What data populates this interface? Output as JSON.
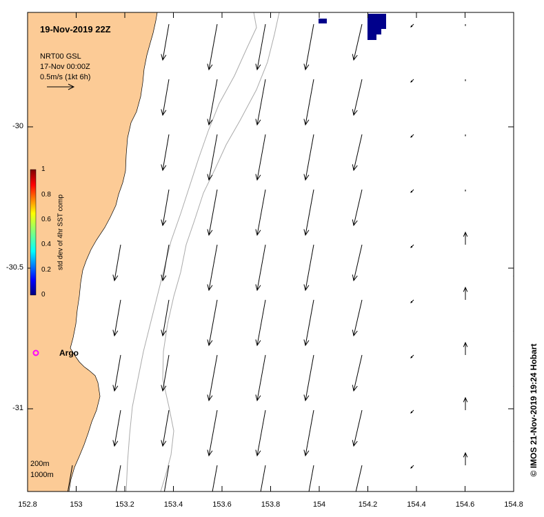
{
  "header": {
    "timestamp": "19-Nov-2019 22Z",
    "product": "NRT00 GSL",
    "product_time": "17-Nov 00:00Z",
    "scale_label": "0.5m/s (1kt 6h)"
  },
  "colorbar": {
    "title": "std dev of 4hr SST comp",
    "ticks": [
      "1",
      "0.8",
      "0.6",
      "0.4",
      "0.2",
      "0"
    ],
    "colors": [
      "#00007f",
      "#0000ff",
      "#007fff",
      "#00ffff",
      "#7fff7f",
      "#ffff00",
      "#ff7f00",
      "#ff0000",
      "#7f0000"
    ]
  },
  "axes": {
    "x_ticks": [
      "152.8",
      "153",
      "153.2",
      "153.4",
      "153.6",
      "153.8",
      "154",
      "154.2",
      "154.4",
      "154.6",
      "154.8"
    ],
    "y_ticks": [
      "-30",
      "-30.5",
      "-31"
    ]
  },
  "markers": {
    "argo_label": "Argo",
    "argo_color": "#ff00ff"
  },
  "legend": {
    "contour_200": "200m",
    "contour_1000": "1000m"
  },
  "credit": "© IMOS 21-Nov-2019 19:24 Hobart",
  "colors": {
    "land": "#fccb96",
    "sst_patch": "#00008b",
    "bathymetry": "#aaaaaa"
  }
}
